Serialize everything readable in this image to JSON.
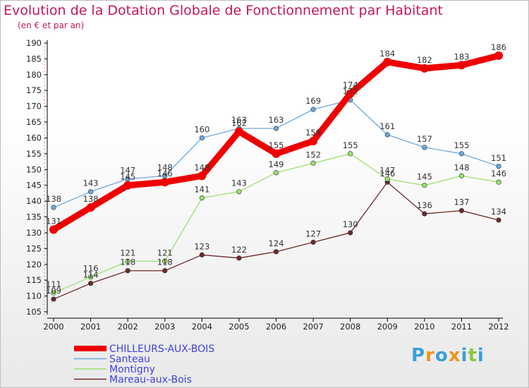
{
  "title": "Evolution de la Dotation Globale de Fonctionnement par Habitant",
  "subtitle": "(en € et par an)",
  "logo": [
    "P",
    "r",
    "o",
    "x",
    "i",
    "t",
    "i"
  ],
  "logo_colors": [
    "#3aa0d8",
    "#f29321",
    "#3aa0d8",
    "#f29321",
    "#3aa0d8",
    "#8cc63f",
    "#3aa0d8"
  ],
  "chart_data": {
    "type": "line",
    "x": [
      "2000",
      "2001",
      "2002",
      "2003",
      "2004",
      "2005",
      "2006",
      "2007",
      "2008",
      "2009",
      "2010",
      "2011",
      "2012"
    ],
    "ylim": [
      105,
      190
    ],
    "yticks": [
      105,
      110,
      115,
      120,
      125,
      130,
      135,
      140,
      145,
      150,
      155,
      160,
      165,
      170,
      175,
      180,
      185,
      190
    ],
    "grid": false,
    "legend_position": "bottom-left",
    "series": [
      {
        "name": "CHILLEURS-AUX-BOIS",
        "color": "#ee0000",
        "text_color": "#4040e0",
        "values": [
          131,
          138,
          145,
          146,
          148,
          162,
          155,
          159,
          174,
          184,
          182,
          183,
          186
        ]
      },
      {
        "name": "Santeau",
        "color": "#6fa8dc",
        "text_color": "#4040e0",
        "values": [
          138,
          143,
          147,
          148,
          160,
          163,
          163,
          169,
          172,
          161,
          157,
          155,
          151
        ]
      },
      {
        "name": "Montigny",
        "color": "#99e070",
        "text_color": "#4040e0",
        "values": [
          111,
          116,
          121,
          121,
          141,
          143,
          149,
          152,
          155,
          147,
          145,
          148,
          146
        ]
      },
      {
        "name": "Mareau-aux-Bois",
        "color": "#6b2a2a",
        "text_color": "#4040e0",
        "values": [
          109,
          114,
          118,
          118,
          123,
          122,
          124,
          127,
          130,
          146,
          136,
          137,
          134
        ]
      }
    ]
  }
}
